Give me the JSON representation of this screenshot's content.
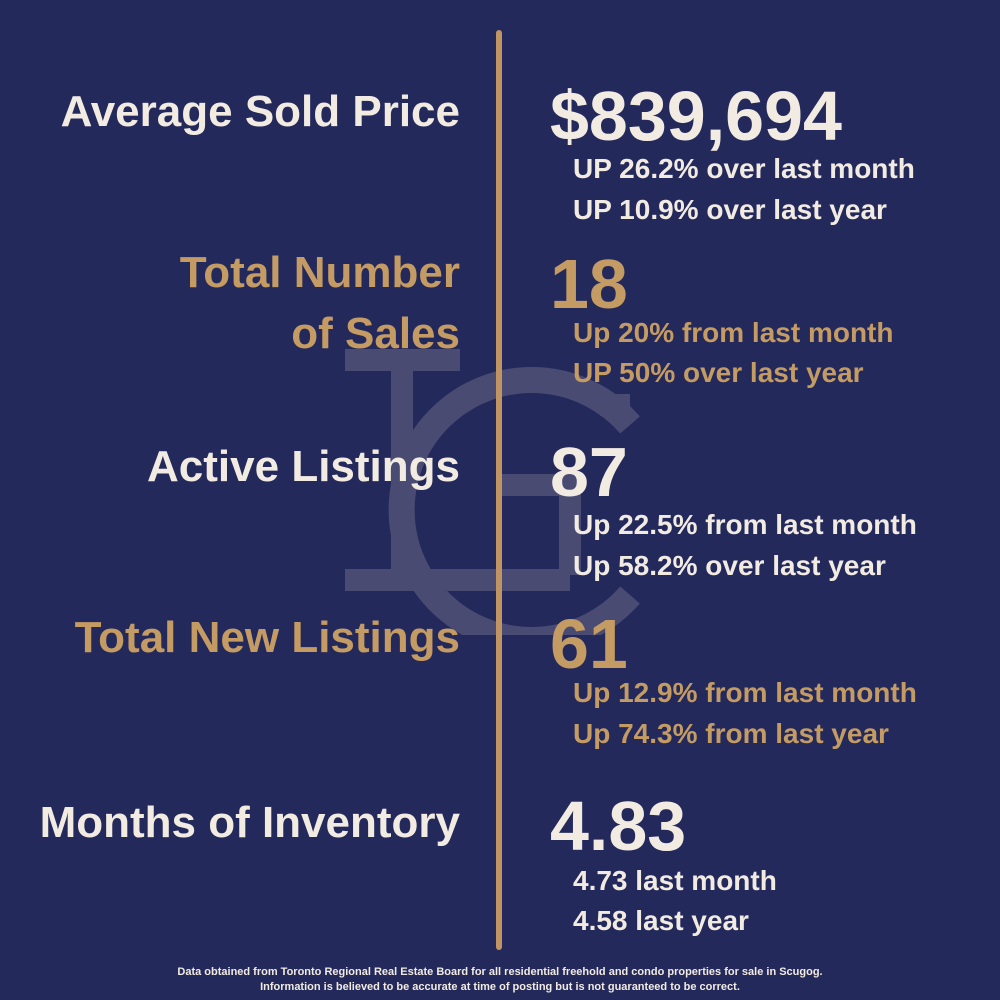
{
  "colors": {
    "background": "#24295c",
    "cream": "#f2ebe2",
    "gold": "#c49b63",
    "divider": "#c09563"
  },
  "stats": [
    {
      "label": "Average Sold Price",
      "value": "$839,694",
      "lines": [
        "UP 26.2% over last month",
        "UP 10.9% over last year"
      ],
      "color": "cream"
    },
    {
      "label_line1": "Total Number",
      "label_line2": "of Sales",
      "value": "18",
      "lines": [
        "Up 20% from last month",
        "UP 50% over last year"
      ],
      "color": "gold"
    },
    {
      "label": "Active Listings",
      "value": "87",
      "lines": [
        "Up 22.5% from last month",
        "Up 58.2% over last year"
      ],
      "color": "cream"
    },
    {
      "label": "Total New Listings",
      "value": "61",
      "lines": [
        "Up 12.9% from last month",
        "Up 74.3% from last year"
      ],
      "color": "gold"
    },
    {
      "label": "Months of Inventory",
      "value": "4.83",
      "lines": [
        "4.73 last month",
        "4.58 last year"
      ],
      "color": "cream"
    }
  ],
  "footer": {
    "line1": "Data obtained from Toronto Regional Real Estate Board for all residential freehold and condo properties for sale in Scugog.",
    "line2": "Information is believed to be accurate at time of posting but is not guaranteed to be correct."
  },
  "watermark": {
    "icon": "lc-monogram-icon"
  }
}
